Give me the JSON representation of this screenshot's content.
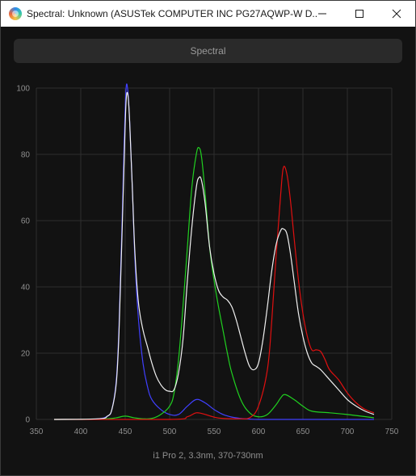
{
  "window": {
    "title": "Spectral: Unknown (ASUSTek COMPUTER INC PG27AQWP-W D...",
    "minimize_icon": "minimize-icon",
    "maximize_icon": "maximize-icon",
    "close_icon": "close-icon"
  },
  "toolbar": {
    "mode_label": "Spectral"
  },
  "caption": "i1 Pro 2, 3.3nm, 370-730nm",
  "colors": {
    "blue": "#4040ff",
    "green": "#20d020",
    "red": "#e01010",
    "white": "#f0f0f0",
    "grid": "#2e2e2e",
    "background": "#121212"
  },
  "chart_data": {
    "type": "line",
    "title": "",
    "xlabel": "",
    "ylabel": "",
    "xlim": [
      350,
      750
    ],
    "ylim": [
      0,
      100
    ],
    "x_ticks": [
      350,
      400,
      450,
      500,
      550,
      600,
      650,
      700,
      750
    ],
    "y_ticks": [
      0,
      20,
      40,
      60,
      80,
      100
    ],
    "grid": true,
    "series": [
      {
        "color": "#4040ff",
        "x": [
          370,
          400,
          420,
          430,
          435,
          440,
          443,
          446,
          449,
          451,
          453,
          455,
          458,
          461,
          465,
          470,
          475,
          480,
          490,
          500,
          510,
          520,
          530,
          540,
          550,
          560,
          570,
          580,
          590,
          600,
          620,
          650,
          700,
          730
        ],
        "y": [
          0,
          0,
          0.2,
          1,
          3,
          12,
          28,
          55,
          85,
          100,
          99,
          90,
          70,
          48,
          30,
          17,
          10,
          6,
          3,
          1.5,
          1.5,
          4,
          6,
          5,
          3,
          1.5,
          0.7,
          0.3,
          0.1,
          0,
          0,
          0,
          0,
          0
        ]
      },
      {
        "color": "#20d020",
        "x": [
          370,
          400,
          430,
          440,
          450,
          460,
          470,
          480,
          490,
          500,
          505,
          510,
          515,
          520,
          525,
          530,
          533,
          536,
          540,
          545,
          550,
          555,
          560,
          565,
          570,
          580,
          590,
          600,
          610,
          620,
          625,
          630,
          640,
          650,
          660,
          680,
          700,
          730
        ],
        "y": [
          0,
          0,
          0.2,
          0.5,
          1,
          0.5,
          0.2,
          0.3,
          1.5,
          4,
          8,
          18,
          34,
          52,
          70,
          80,
          82,
          79,
          68,
          52,
          42,
          34,
          27,
          20,
          14,
          6,
          2,
          0.8,
          1.5,
          4.5,
          6.5,
          7.5,
          6,
          4,
          2.5,
          2,
          1.5,
          0.5
        ]
      },
      {
        "color": "#e01010",
        "x": [
          370,
          500,
          520,
          530,
          540,
          550,
          560,
          580,
          590,
          600,
          610,
          615,
          620,
          625,
          628,
          632,
          636,
          640,
          645,
          650,
          655,
          660,
          665,
          670,
          675,
          680,
          690,
          700,
          710,
          720,
          730
        ],
        "y": [
          0,
          0,
          0.8,
          2,
          1.5,
          0.7,
          0.3,
          0.2,
          0.5,
          4,
          15,
          30,
          50,
          68,
          76,
          74,
          66,
          55,
          42,
          32,
          25,
          21,
          21,
          20.5,
          18,
          15,
          12,
          8,
          5,
          3,
          2
        ]
      },
      {
        "color": "#f0f0f0",
        "x": [
          370,
          420,
          430,
          435,
          440,
          443,
          446,
          449,
          451,
          453,
          455,
          458,
          461,
          465,
          470,
          475,
          480,
          485,
          490,
          495,
          500,
          505,
          510,
          515,
          520,
          525,
          530,
          533,
          536,
          540,
          545,
          550,
          555,
          560,
          565,
          570,
          575,
          580,
          585,
          590,
          595,
          600,
          605,
          610,
          615,
          620,
          625,
          628,
          632,
          636,
          640,
          645,
          650,
          655,
          660,
          665,
          670,
          680,
          690,
          700,
          710,
          720,
          730
        ],
        "y": [
          0,
          0.2,
          1,
          3,
          11,
          26,
          52,
          80,
          96,
          98,
          90,
          70,
          50,
          35,
          27,
          22,
          17,
          13,
          10.5,
          9,
          8.5,
          9,
          14,
          24,
          42,
          58,
          70,
          73,
          72,
          65,
          52,
          44,
          39,
          37,
          36,
          34,
          30,
          25,
          20,
          16,
          15,
          17,
          24,
          34,
          45,
          53,
          57,
          57.5,
          56,
          50,
          42,
          32,
          25,
          20,
          17,
          16,
          15,
          12,
          9,
          6,
          4,
          2.5,
          1.5
        ]
      }
    ]
  }
}
